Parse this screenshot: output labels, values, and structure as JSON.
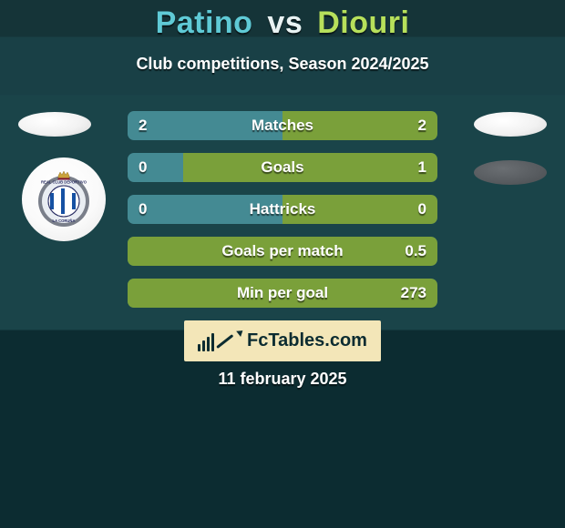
{
  "title": {
    "player1": "Patino",
    "vs": "vs",
    "player2": "Diouri"
  },
  "player_colors": {
    "p1": "#5fcad6",
    "p2": "#b7e05b"
  },
  "subtitle": "Club competitions, Season 2024/2025",
  "bar_colors": {
    "left": "#448a93",
    "right": "#7aa03a",
    "track": "#2f6a72"
  },
  "rows": [
    {
      "label": "Matches",
      "left_val": "2",
      "right_val": "2",
      "left_pct": 50,
      "right_pct": 50
    },
    {
      "label": "Goals",
      "left_val": "0",
      "right_val": "1",
      "left_pct": 18,
      "right_pct": 82
    },
    {
      "label": "Hattricks",
      "left_val": "0",
      "right_val": "0",
      "left_pct": 50,
      "right_pct": 50
    },
    {
      "label": "Goals per match",
      "left_val": "",
      "right_val": "0.5",
      "left_pct": 0,
      "right_pct": 100
    },
    {
      "label": "Min per goal",
      "left_val": "",
      "right_val": "273",
      "left_pct": 0,
      "right_pct": 100
    }
  ],
  "brand": "FcTables.com",
  "date": "11 february 2025",
  "crest_palette": {
    "ring_outer": "#7a7f8a",
    "ring_inner": "#e9edf2",
    "ring_text": "#2b2f64",
    "stripe_blue": "#1651a3",
    "stripe_white": "#ffffff",
    "crown": "#c9a23a"
  }
}
